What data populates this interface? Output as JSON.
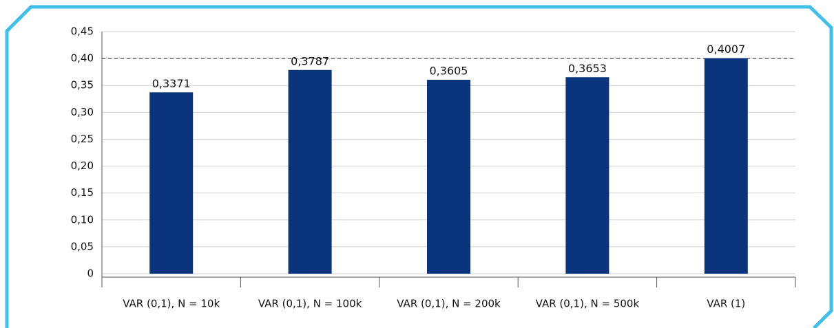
{
  "chart_data": {
    "type": "bar",
    "categories": [
      "VAR (0,1), N = 10k",
      "VAR (0,1), N = 100k",
      "VAR (0,1), N = 200k",
      "VAR (0,1), N = 500k",
      "VAR (1)"
    ],
    "values": [
      0.3371,
      0.3787,
      0.3605,
      0.3653,
      0.4007
    ],
    "value_labels": [
      "0,3371",
      "0,3787",
      "0,3605",
      "0,3653",
      "0,4007"
    ],
    "color": "#0a357c",
    "ylim": [
      0,
      0.45
    ],
    "yticks": [
      0,
      {
        "value": 0.05,
        "label": "0,05"
      },
      {
        "value": 0.1,
        "label": "0,10"
      },
      {
        "value": 0.15,
        "label": "0,15"
      },
      {
        "value": 0.2,
        "label": "0,20"
      },
      {
        "value": 0.25,
        "label": "0,25"
      },
      {
        "value": 0.3,
        "label": "0,30"
      },
      {
        "value": 0.35,
        "label": "0,35"
      },
      {
        "value": 0.4,
        "label": "0,40"
      },
      {
        "value": 0.45,
        "label": "0,45"
      }
    ],
    "grid": true,
    "reference_line": 0.4
  }
}
